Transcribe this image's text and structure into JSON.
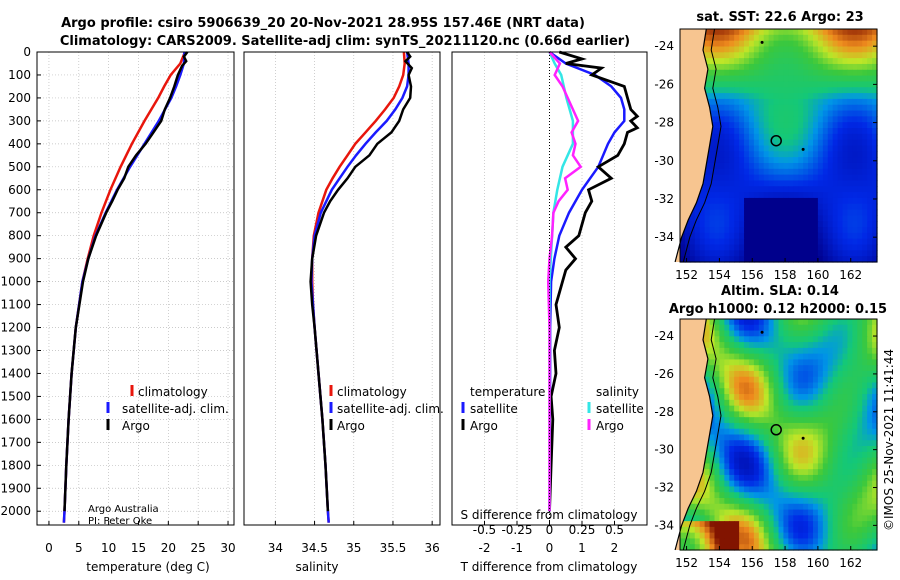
{
  "titles": {
    "line1": "Argo profile: csiro 5906639_20 20-Nov-2021 28.95S 157.46E (NRT data)",
    "line2": "Climatology: CARS2009. Satellite-adj clim: synTS_20211120.nc (0.66d earlier)"
  },
  "credit": {
    "line1": "Argo Australia",
    "line2": "PI: Peter Oke"
  },
  "timestamp": "©IMOS 25-Nov-2021 11:41:44",
  "colors": {
    "climatology": "#e8160c",
    "satellite": "#1a1aff",
    "argo": "#000000",
    "sat_salinity": "#33e6e6",
    "argo_salinity": "#ff22ff",
    "land": "#f7c590"
  },
  "chart_data": [
    {
      "type": "line",
      "id": "temperature",
      "xlabel": "temperature (deg C)",
      "ylabel": "",
      "xlim": [
        -2,
        31
      ],
      "ylim": [
        2060,
        0
      ],
      "xticks": [
        0,
        5,
        10,
        15,
        20,
        25,
        30
      ],
      "yticks": [
        0,
        100,
        200,
        300,
        400,
        500,
        600,
        700,
        800,
        900,
        1000,
        1100,
        1200,
        1300,
        1400,
        1500,
        1600,
        1700,
        1800,
        1900,
        2000
      ],
      "legend": [
        "climatology",
        "satellite-adj. clim.",
        "Argo"
      ],
      "series": [
        {
          "name": "climatology",
          "depth": [
            0,
            50,
            100,
            150,
            200,
            300,
            400,
            500,
            600,
            700,
            800,
            900,
            1000,
            1200,
            1400,
            1600,
            1800,
            2000,
            2050
          ],
          "values": [
            22.8,
            22.0,
            20.4,
            19.3,
            18.3,
            16.0,
            13.9,
            12.0,
            10.3,
            8.8,
            7.5,
            6.5,
            5.6,
            4.5,
            3.8,
            3.3,
            2.9,
            2.6,
            2.5
          ]
        },
        {
          "name": "satellite-adj. clim.",
          "depth": [
            0,
            50,
            100,
            150,
            200,
            300,
            400,
            500,
            600,
            700,
            800,
            900,
            1000,
            1200,
            1400,
            1600,
            1800,
            2000,
            2050
          ],
          "values": [
            22.7,
            22.6,
            22.0,
            21.3,
            20.5,
            18.4,
            16.0,
            13.6,
            11.4,
            9.5,
            7.8,
            6.6,
            5.6,
            4.5,
            3.8,
            3.3,
            2.9,
            2.6,
            2.5
          ]
        },
        {
          "name": "Argo",
          "depth": [
            0,
            20,
            40,
            60,
            100,
            150,
            200,
            250,
            300,
            350,
            400,
            450,
            500,
            550,
            600,
            650,
            700,
            800,
            900,
            1000,
            1200,
            1400,
            1600,
            1800,
            2000
          ],
          "values": [
            23.2,
            22.6,
            23.0,
            22.3,
            21.6,
            21.0,
            20.3,
            19.4,
            18.8,
            17.5,
            16.2,
            14.6,
            13.3,
            12.6,
            11.5,
            10.6,
            9.6,
            7.9,
            6.6,
            5.7,
            4.5,
            3.8,
            3.3,
            2.9,
            2.6
          ]
        }
      ]
    },
    {
      "type": "line",
      "id": "salinity",
      "xlabel": "salinity",
      "ylabel": "",
      "xlim": [
        33.6,
        36.1
      ],
      "ylim": [
        2060,
        0
      ],
      "xticks": [
        34,
        34.5,
        35,
        35.5,
        36
      ],
      "legend": [
        "climatology",
        "satellite-adj. clim.",
        "Argo"
      ],
      "series": [
        {
          "name": "climatology",
          "depth": [
            0,
            50,
            100,
            150,
            200,
            250,
            300,
            350,
            400,
            450,
            500,
            550,
            600,
            700,
            800,
            900,
            1000,
            1100,
            1200,
            1400,
            1600,
            1800,
            2000,
            2050
          ],
          "values": [
            35.64,
            35.65,
            35.63,
            35.58,
            35.51,
            35.4,
            35.28,
            35.15,
            35.02,
            34.92,
            34.82,
            34.73,
            34.65,
            34.55,
            34.49,
            34.47,
            34.47,
            34.48,
            34.5,
            34.55,
            34.6,
            34.64,
            34.67,
            34.68
          ]
        },
        {
          "name": "satellite-adj. clim.",
          "depth": [
            0,
            50,
            100,
            150,
            200,
            250,
            300,
            350,
            400,
            450,
            500,
            550,
            600,
            700,
            800,
            900,
            1000,
            1100,
            1200,
            1400,
            1600,
            1800,
            2000,
            2050
          ],
          "values": [
            35.68,
            35.7,
            35.7,
            35.68,
            35.62,
            35.53,
            35.42,
            35.28,
            35.15,
            35.03,
            34.92,
            34.82,
            34.72,
            34.58,
            34.5,
            34.47,
            34.46,
            34.48,
            34.5,
            34.55,
            34.6,
            34.64,
            34.67,
            34.68
          ]
        },
        {
          "name": "Argo",
          "depth": [
            0,
            20,
            40,
            70,
            100,
            150,
            200,
            250,
            300,
            350,
            400,
            450,
            500,
            550,
            600,
            650,
            700,
            800,
            900,
            1000,
            1100,
            1200,
            1400,
            1600,
            1800,
            2000
          ],
          "values": [
            35.68,
            35.72,
            35.66,
            35.74,
            35.7,
            35.73,
            35.72,
            35.63,
            35.58,
            35.48,
            35.3,
            35.2,
            35.02,
            34.92,
            34.8,
            34.7,
            34.62,
            34.52,
            34.47,
            34.45,
            34.47,
            34.5,
            34.55,
            34.6,
            34.64,
            34.67
          ]
        }
      ]
    },
    {
      "type": "line",
      "id": "difference",
      "xlabel": "T difference from climatology",
      "xlabel_top": "S difference from climatology",
      "xlim": [
        -3,
        3
      ],
      "ylim": [
        2060,
        0
      ],
      "xticks": [
        -2,
        -1,
        0,
        1,
        2
      ],
      "xticks_top": [
        -0.5,
        -0.25,
        0,
        0.25,
        0.5
      ],
      "legend_left_title": "temperature",
      "legend_left": [
        "satellite",
        "Argo"
      ],
      "legend_right_title": "salinity",
      "legend_right": [
        "satellite",
        "Argo"
      ],
      "series": [
        {
          "name": "satellite T",
          "depth": [
            0,
            50,
            100,
            150,
            200,
            250,
            300,
            350,
            400,
            500,
            600,
            700,
            800,
            900,
            1000,
            1200,
            1400,
            1600,
            1800,
            2000
          ],
          "values": [
            0.0,
            0.5,
            1.4,
            1.9,
            2.2,
            2.3,
            2.3,
            2.0,
            1.8,
            1.5,
            1.0,
            0.6,
            0.3,
            0.15,
            0.05,
            0.02,
            0.02,
            0.01,
            0.01,
            0.0
          ]
        },
        {
          "name": "Argo T",
          "depth": [
            0,
            30,
            50,
            70,
            100,
            150,
            200,
            250,
            280,
            300,
            330,
            350,
            400,
            450,
            500,
            550,
            600,
            650,
            700,
            800,
            850,
            900,
            950,
            1000,
            1100,
            1200,
            1300,
            1400,
            1500,
            1600,
            1800,
            2000
          ],
          "values": [
            0.3,
            1.0,
            0.5,
            1.6,
            1.3,
            2.3,
            2.4,
            2.5,
            2.7,
            2.5,
            2.7,
            2.4,
            2.3,
            2.1,
            1.5,
            1.9,
            1.2,
            1.3,
            1.1,
            0.9,
            0.5,
            0.8,
            0.5,
            0.4,
            0.2,
            0.3,
            0.15,
            0.2,
            0.05,
            0.1,
            0.05,
            0.0
          ]
        },
        {
          "name": "satellite S",
          "depth": [
            0,
            50,
            100,
            200,
            300,
            400,
            500,
            600,
            700,
            800,
            900,
            1000,
            1200,
            1400,
            1600,
            1800,
            2000
          ],
          "values": [
            0.0,
            0.04,
            0.09,
            0.13,
            0.18,
            0.18,
            0.1,
            0.06,
            0.03,
            0.02,
            0.01,
            0.0,
            0.0,
            0.0,
            0.0,
            0.0,
            0.0
          ]
        },
        {
          "name": "Argo S",
          "depth": [
            0,
            50,
            100,
            150,
            200,
            250,
            300,
            350,
            400,
            450,
            500,
            550,
            600,
            650,
            700,
            800,
            900,
            1000,
            1200,
            1400,
            1600,
            1800,
            2000
          ],
          "values": [
            0.0,
            0.08,
            0.04,
            0.1,
            0.14,
            0.18,
            0.22,
            0.17,
            0.2,
            0.18,
            0.24,
            0.12,
            0.14,
            0.07,
            0.03,
            0.02,
            0.0,
            -0.01,
            0.0,
            0.0,
            0.0,
            0.0,
            0.0
          ]
        }
      ]
    },
    {
      "type": "heatmap",
      "id": "sst_map",
      "title": "sat. SST: 22.6 Argo: 23",
      "xticks": [
        152,
        154,
        156,
        158,
        160,
        162
      ],
      "yticks": [
        -24,
        -26,
        -28,
        -30,
        -32,
        -34
      ],
      "xlim": [
        151.6,
        163.6
      ],
      "ylim": [
        -35.3,
        -23.1
      ],
      "profile_location": {
        "lon": 157.46,
        "lat": -28.95
      }
    },
    {
      "type": "heatmap",
      "id": "sla_map",
      "title_line1": "Altim. SLA: 0.14",
      "title_line2": "Argo h1000: 0.12 h2000: 0.15",
      "xticks": [
        152,
        154,
        156,
        158,
        160,
        162
      ],
      "yticks": [
        -24,
        -26,
        -28,
        -30,
        -32,
        -34
      ],
      "xlim": [
        151.6,
        163.6
      ],
      "ylim": [
        -35.3,
        -23.1
      ],
      "profile_location": {
        "lon": 157.46,
        "lat": -28.95
      }
    }
  ]
}
